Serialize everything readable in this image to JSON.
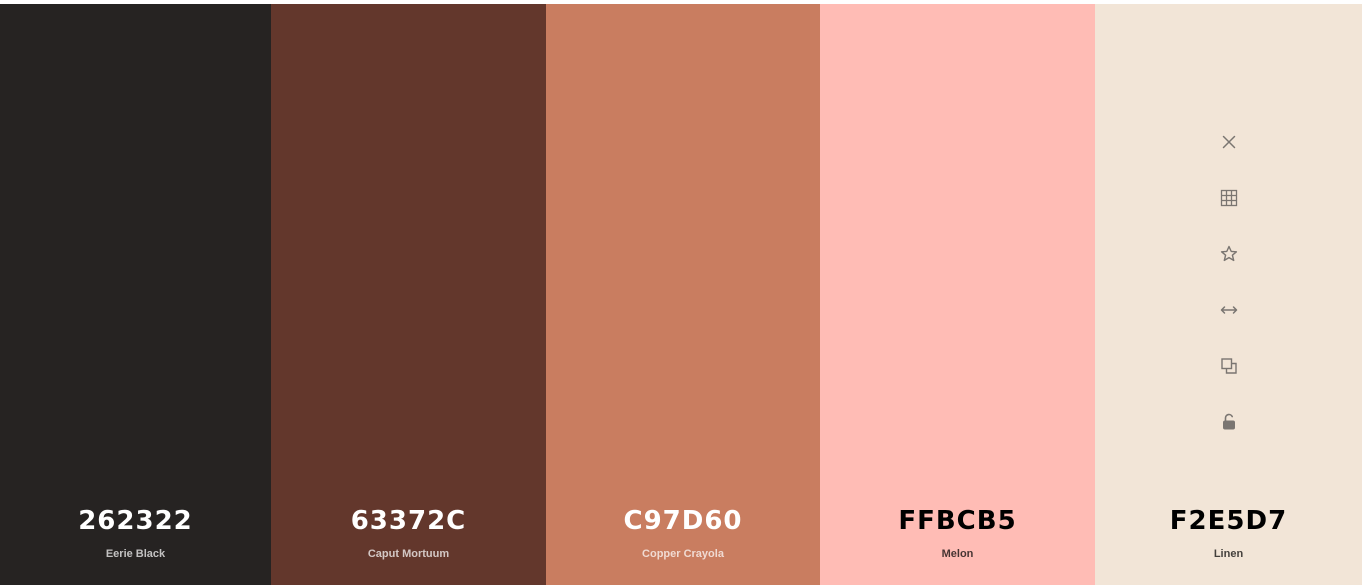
{
  "palette": {
    "swatches": [
      {
        "hex": "262322",
        "name": "Eerie Black",
        "color": "#262322",
        "text_color": "#ffffff"
      },
      {
        "hex": "63372C",
        "name": "Caput Mortuum",
        "color": "#63372C",
        "text_color": "#ffffff"
      },
      {
        "hex": "C97D60",
        "name": "Copper Crayola",
        "color": "#C97D60",
        "text_color": "#ffffff"
      },
      {
        "hex": "FFBCB5",
        "name": "Melon",
        "color": "#FFBCB5",
        "text_color": "#000000"
      },
      {
        "hex": "F2E5D7",
        "name": "Linen",
        "color": "#F2E5D7",
        "text_color": "#000000"
      }
    ],
    "hovered_swatch_tools": [
      "close-icon",
      "grid-icon",
      "star-icon",
      "drag-arrows-icon",
      "copy-icon",
      "unlock-icon"
    ],
    "icon_color": "#7a7571"
  }
}
